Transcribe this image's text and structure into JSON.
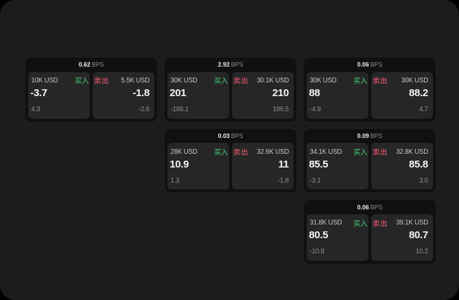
{
  "unit_label": "BPS",
  "labels": {
    "buy": "买入",
    "sell": "卖出"
  },
  "colors": {
    "page_bg": "#1c1c1c",
    "card_bg": "#101010",
    "panel_bg": "#262626",
    "buy_green": "#3fb56e",
    "sell_red": "#d7526c",
    "text_primary": "#f4f4f4",
    "text_secondary": "#c6c6c6",
    "text_muted": "#8f8f8f"
  },
  "cards": [
    {
      "bps": "0.62",
      "buy": {
        "size": "10K USD",
        "price": "-3.7",
        "delta": "4.3"
      },
      "sell": {
        "size": "5.5K USD",
        "price": "-1.8",
        "delta": "-2.6"
      }
    },
    {
      "bps": "2.92",
      "buy": {
        "size": "30K USD",
        "price": "201",
        "delta": "-188.1"
      },
      "sell": {
        "size": "30.1K USD",
        "price": "210",
        "delta": "196.5"
      }
    },
    {
      "bps": "0.06",
      "buy": {
        "size": "30K USD",
        "price": "88",
        "delta": "-4.9"
      },
      "sell": {
        "size": "30K USD",
        "price": "88.2",
        "delta": "4.7"
      }
    },
    {
      "bps": "0.03",
      "buy": {
        "size": "28K USD",
        "price": "10.9",
        "delta": "1.3"
      },
      "sell": {
        "size": "32.6K USD",
        "price": "11",
        "delta": "-1.8"
      }
    },
    {
      "bps": "0.09",
      "buy": {
        "size": "34.1K USD",
        "price": "85.5",
        "delta": "-3.1"
      },
      "sell": {
        "size": "32.8K USD",
        "price": "85.8",
        "delta": "3.0"
      }
    },
    {
      "bps": "0.06",
      "buy": {
        "size": "31.8K USD",
        "price": "80.5",
        "delta": "-10.8"
      },
      "sell": {
        "size": "39.1K USD",
        "price": "80.7",
        "delta": "10.2"
      }
    }
  ]
}
